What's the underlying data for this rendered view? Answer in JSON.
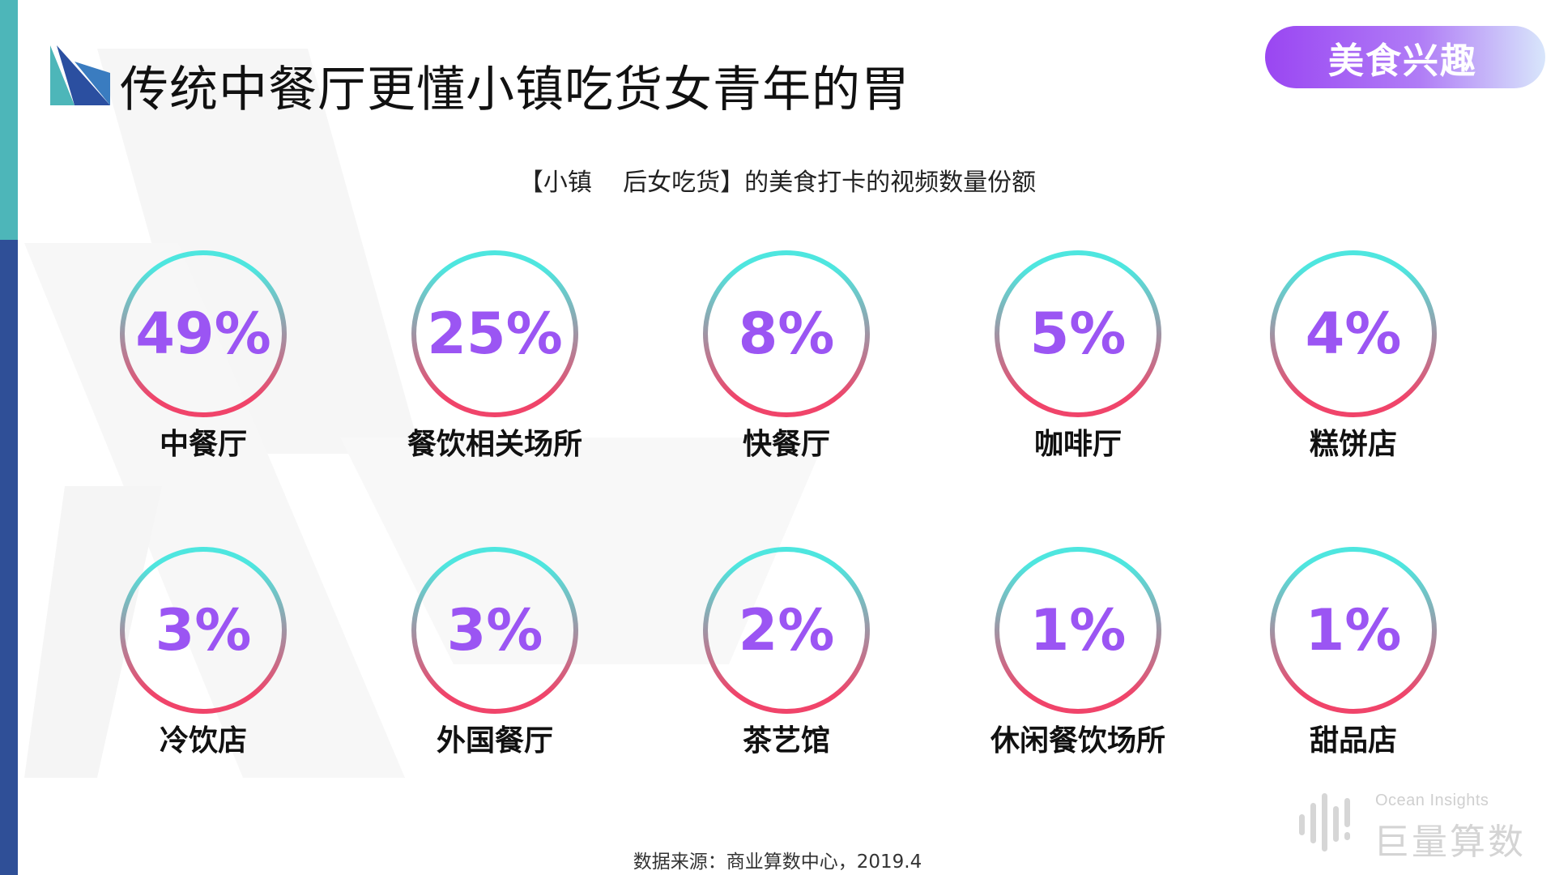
{
  "header": {
    "title": "传统中餐厅更懂小镇吃货女青年的胃",
    "tag": "美食兴趣"
  },
  "footer": {
    "source": "数据来源：商业算数中心，2019.4"
  },
  "brand": {
    "en": "Ocean Insights",
    "cn": "巨量算数"
  },
  "colors": {
    "ring_top": "#4ee6df",
    "ring_bottom": "#f0446a",
    "value_text": "#9b55f3",
    "tag_start": "#9a46f2",
    "tag_end": "#d8e6fb",
    "sidebar_top": "#4db6b9",
    "sidebar_bottom": "#2f4f97"
  },
  "chart_data": {
    "type": "table",
    "title": "【小镇    后女吃货】的美食打卡的视频数量份额",
    "unit": "%",
    "categories": [
      "中餐厅",
      "餐饮相关场所",
      "快餐厅",
      "咖啡厅",
      "糕饼店",
      "冷饮店",
      "外国餐厅",
      "茶艺馆",
      "休闲餐饮场所",
      "甜品店"
    ],
    "values": [
      49,
      25,
      8,
      5,
      4,
      3,
      3,
      2,
      1,
      1
    ],
    "value_labels": [
      "49%",
      "25%",
      "8%",
      "5%",
      "4%",
      "3%",
      "3%",
      "2%",
      "1%",
      "1%"
    ]
  }
}
